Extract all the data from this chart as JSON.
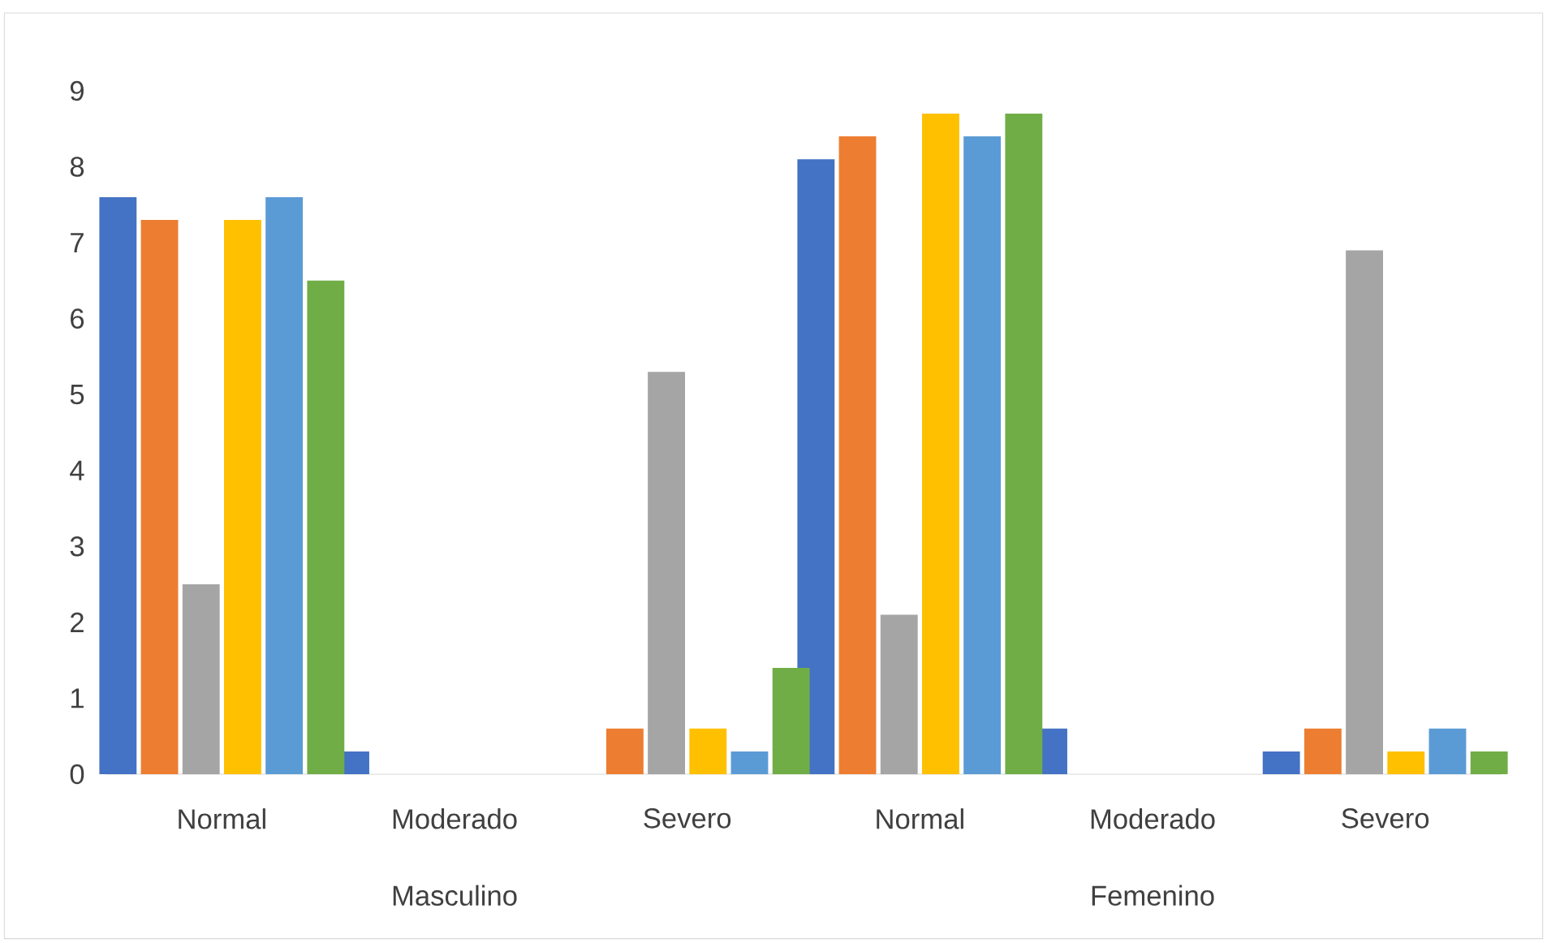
{
  "chart_data": {
    "type": "bar",
    "categories": [
      "Normal",
      "Moderado",
      "Severo",
      "Normal",
      "Moderado",
      "Severo"
    ],
    "series": [
      {
        "color": "#4472c4",
        "values": [
          7.6,
          0.3,
          0,
          8.1,
          0.6,
          0.3
        ]
      },
      {
        "color": "#ed7d31",
        "values": [
          7.3,
          0,
          0.6,
          8.4,
          0,
          0.6
        ]
      },
      {
        "color": "#a5a5a5",
        "values": [
          2.5,
          0,
          5.3,
          2.1,
          0,
          6.9
        ]
      },
      {
        "color": "#ffc000",
        "values": [
          7.3,
          0,
          0.6,
          8.7,
          0,
          0.3
        ]
      },
      {
        "color": "#5b9bd5",
        "values": [
          7.6,
          0,
          0.3,
          8.4,
          0,
          0.6
        ]
      },
      {
        "color": "#70ad47",
        "values": [
          6.5,
          0,
          1.4,
          8.7,
          0,
          0.3
        ]
      }
    ],
    "ylim": [
      0,
      9
    ],
    "yticks": [
      0,
      1,
      2,
      3,
      4,
      5,
      6,
      7,
      8,
      9
    ],
    "annotations": [
      "Masculino",
      "Femenino"
    ],
    "grid": false
  }
}
